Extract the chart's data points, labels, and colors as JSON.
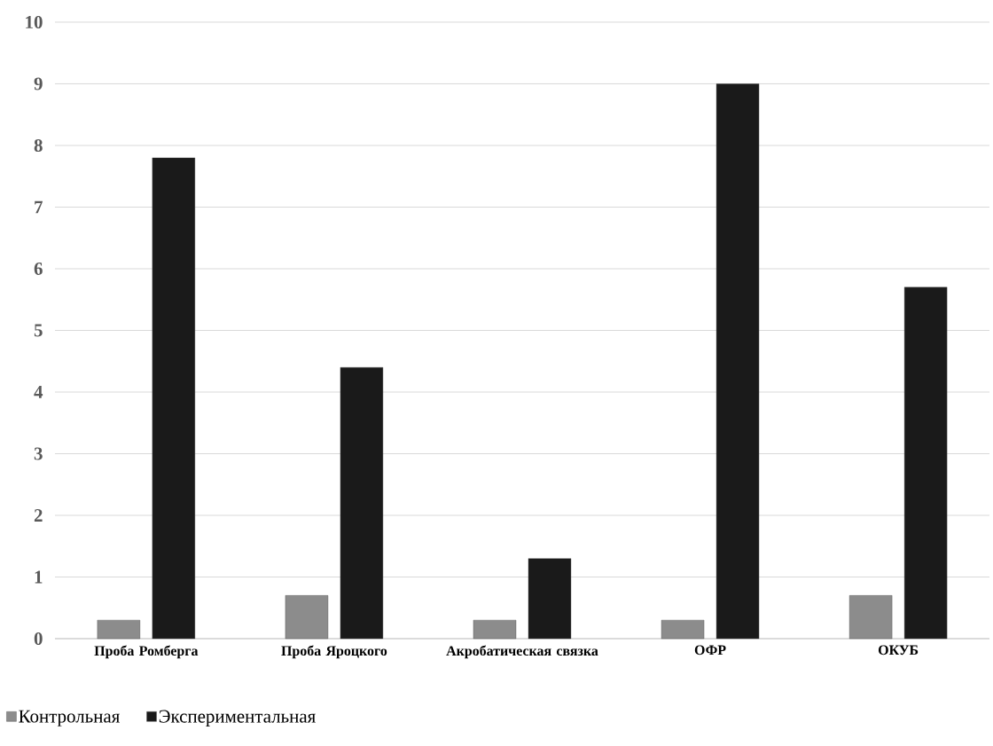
{
  "chart_data": {
    "type": "bar",
    "categories": [
      "Проба Ромберга",
      "Проба Яроцкого",
      "Акробатическая связка",
      "ОФР",
      "ОКУБ"
    ],
    "series": [
      {
        "name": "Контрольная",
        "color": "#8c8c8c",
        "values": [
          0.3,
          0.7,
          0.3,
          0.3,
          0.7
        ]
      },
      {
        "name": "Экспериментальная",
        "color": "#1a1a1a",
        "values": [
          7.8,
          4.4,
          1.3,
          9.0,
          5.7
        ]
      }
    ],
    "ylim": [
      0,
      10
    ],
    "yticks": [
      0,
      1,
      2,
      3,
      4,
      5,
      6,
      7,
      8,
      9,
      10
    ],
    "grid": "y",
    "legend": "bottom left"
  }
}
